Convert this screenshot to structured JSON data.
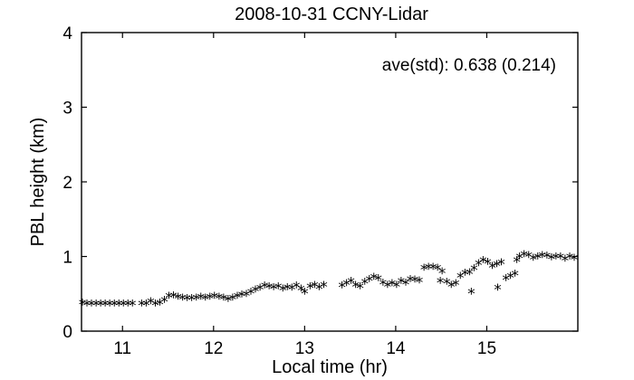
{
  "chart_data": {
    "type": "scatter",
    "title": "2008-10-31 CCNY-Lidar",
    "xlabel": "Local time (hr)",
    "ylabel": "PBL height (km)",
    "xlim": [
      10.55,
      16.0
    ],
    "ylim": [
      0,
      4
    ],
    "xticks": [
      11,
      12,
      13,
      14,
      15
    ],
    "yticks": [
      0,
      1,
      2,
      3,
      4
    ],
    "annotation": "ave(std): 0.638 (0.214)",
    "marker": "*",
    "grid": false,
    "series": [
      {
        "values": [
          [
            10.56,
            0.38
          ],
          [
            10.61,
            0.37
          ],
          [
            10.66,
            0.37
          ],
          [
            10.71,
            0.37
          ],
          [
            10.76,
            0.37
          ],
          [
            10.81,
            0.37
          ],
          [
            10.86,
            0.37
          ],
          [
            10.91,
            0.37
          ],
          [
            10.96,
            0.37
          ],
          [
            11.01,
            0.37
          ],
          [
            11.06,
            0.37
          ],
          [
            11.11,
            0.37
          ],
          [
            11.21,
            0.37
          ],
          [
            11.26,
            0.37
          ],
          [
            11.31,
            0.4
          ],
          [
            11.36,
            0.37
          ],
          [
            11.41,
            0.38
          ],
          [
            11.46,
            0.42
          ],
          [
            11.51,
            0.47
          ],
          [
            11.56,
            0.48
          ],
          [
            11.61,
            0.46
          ],
          [
            11.66,
            0.45
          ],
          [
            11.71,
            0.44
          ],
          [
            11.76,
            0.44
          ],
          [
            11.81,
            0.45
          ],
          [
            11.86,
            0.46
          ],
          [
            11.91,
            0.45
          ],
          [
            11.96,
            0.46
          ],
          [
            12.01,
            0.47
          ],
          [
            12.06,
            0.46
          ],
          [
            12.11,
            0.45
          ],
          [
            12.16,
            0.43
          ],
          [
            12.21,
            0.45
          ],
          [
            12.26,
            0.47
          ],
          [
            12.31,
            0.49
          ],
          [
            12.36,
            0.5
          ],
          [
            12.41,
            0.53
          ],
          [
            12.46,
            0.56
          ],
          [
            12.51,
            0.58
          ],
          [
            12.56,
            0.61
          ],
          [
            12.61,
            0.6
          ],
          [
            12.66,
            0.59
          ],
          [
            12.71,
            0.6
          ],
          [
            12.76,
            0.57
          ],
          [
            12.81,
            0.59
          ],
          [
            12.86,
            0.58
          ],
          [
            12.91,
            0.61
          ],
          [
            12.96,
            0.57
          ],
          [
            13.0,
            0.53
          ],
          [
            13.06,
            0.6
          ],
          [
            13.11,
            0.62
          ],
          [
            13.16,
            0.59
          ],
          [
            13.21,
            0.62
          ],
          [
            13.41,
            0.61
          ],
          [
            13.46,
            0.64
          ],
          [
            13.51,
            0.67
          ],
          [
            13.56,
            0.62
          ],
          [
            13.61,
            0.6
          ],
          [
            13.66,
            0.66
          ],
          [
            13.71,
            0.7
          ],
          [
            13.76,
            0.73
          ],
          [
            13.81,
            0.71
          ],
          [
            13.86,
            0.65
          ],
          [
            13.91,
            0.62
          ],
          [
            13.96,
            0.64
          ],
          [
            14.01,
            0.62
          ],
          [
            14.06,
            0.67
          ],
          [
            14.11,
            0.65
          ],
          [
            14.16,
            0.7
          ],
          [
            14.21,
            0.69
          ],
          [
            14.26,
            0.68
          ],
          [
            14.31,
            0.85
          ],
          [
            14.36,
            0.86
          ],
          [
            14.41,
            0.86
          ],
          [
            14.46,
            0.85
          ],
          [
            14.49,
            0.67
          ],
          [
            14.51,
            0.8
          ],
          [
            14.56,
            0.66
          ],
          [
            14.61,
            0.62
          ],
          [
            14.66,
            0.64
          ],
          [
            14.71,
            0.74
          ],
          [
            14.76,
            0.78
          ],
          [
            14.81,
            0.79
          ],
          [
            14.83,
            0.53
          ],
          [
            14.86,
            0.84
          ],
          [
            14.91,
            0.91
          ],
          [
            14.96,
            0.95
          ],
          [
            15.01,
            0.93
          ],
          [
            15.06,
            0.87
          ],
          [
            15.11,
            0.9
          ],
          [
            15.12,
            0.58
          ],
          [
            15.16,
            0.92
          ],
          [
            15.21,
            0.71
          ],
          [
            15.26,
            0.74
          ],
          [
            15.31,
            0.77
          ],
          [
            15.33,
            0.95
          ],
          [
            15.36,
            1.0
          ],
          [
            15.41,
            1.03
          ],
          [
            15.46,
            1.02
          ],
          [
            15.51,
            0.98
          ],
          [
            15.56,
            1.0
          ],
          [
            15.61,
            1.02
          ],
          [
            15.66,
            1.01
          ],
          [
            15.71,
            0.99
          ],
          [
            15.76,
            1.0
          ],
          [
            15.81,
            1.0
          ],
          [
            15.86,
            0.97
          ],
          [
            15.91,
            1.0
          ],
          [
            15.96,
            0.98
          ]
        ]
      }
    ]
  }
}
